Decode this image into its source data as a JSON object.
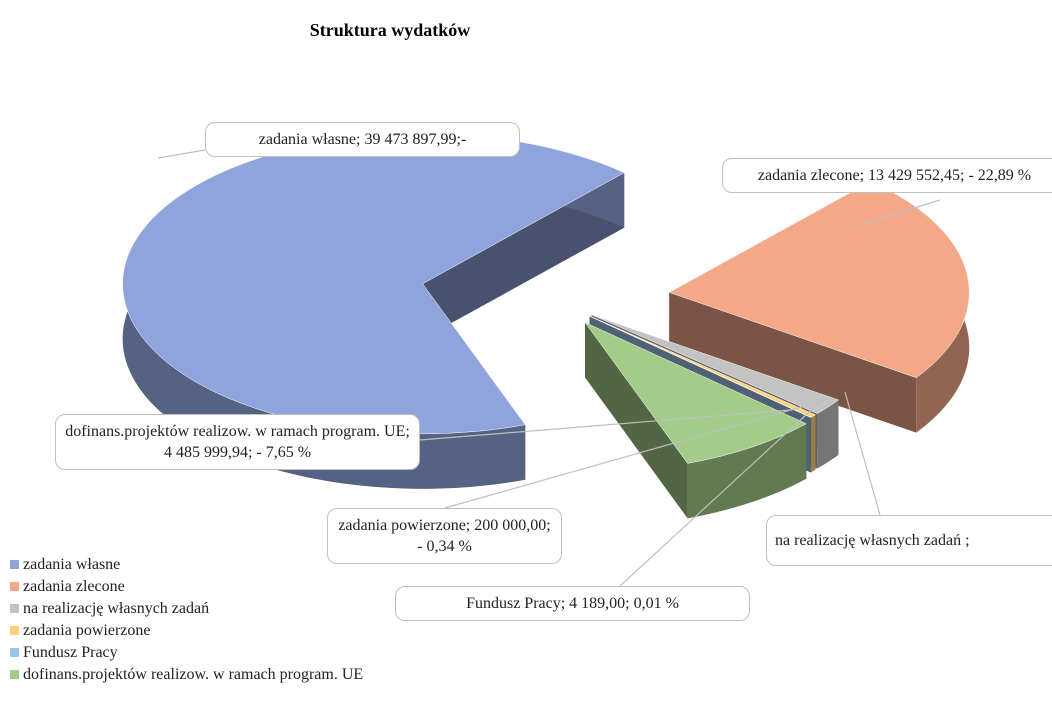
{
  "chart_data": {
    "type": "pie3d",
    "title": "Struktura wydatków",
    "categories": [
      "zadania własne",
      "zadania zlecone",
      "na realizację własnych zadań",
      "zadania powierzone",
      "Fundusz Pracy",
      "dofinans.projektów realizow. w ramach program. UE"
    ],
    "values": [
      39473897.99,
      13429552.45,
      1076314,
      200000,
      4189,
      4485999.94
    ],
    "value_labels": [
      "zadania własne; 39 473 897,99;-",
      "zadania zlecone; 13 429 552,45; - 22,89 %",
      "na realizację własnych zadań ;",
      "zadania powierzone; 200 000,00; - 0,34 %",
      "Fundusz Pracy; 4 189,00; 0,01 %",
      "dofinans.projektów realizow. w ramach program. UE; 4 485 999,94; - 7,65 %"
    ],
    "colors": [
      "#8fa3dc",
      "#f4a888",
      "#c3c3c3",
      "#ffd27a",
      "#9dc3e6",
      "#a3cc88"
    ],
    "legend": "bottom-left"
  }
}
